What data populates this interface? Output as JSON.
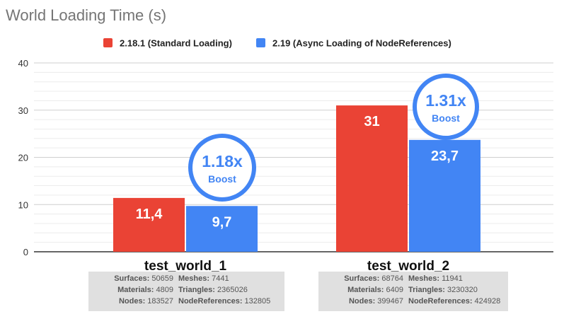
{
  "chart_data": {
    "type": "bar",
    "title": "World Loading Time (s)",
    "categories": [
      "test_world_1",
      "test_world_2"
    ],
    "series": [
      {
        "name": "2.18.1 (Standard Loading)",
        "color": "#ea4335",
        "values": [
          11.4,
          31
        ],
        "labels": [
          "11,4",
          "31"
        ]
      },
      {
        "name": "2.19 (Async Loading of NodeReferences)",
        "color": "#4285f4",
        "values": [
          9.7,
          23.7
        ],
        "labels": [
          "9,7",
          "23,7"
        ]
      }
    ],
    "ylim": [
      0,
      40
    ],
    "yticks": [
      0,
      10,
      20,
      30,
      40
    ],
    "grid": true,
    "legend_position": "top",
    "annotations": [
      {
        "category": "test_world_1",
        "ratio": "1.18x",
        "text": "Boost"
      },
      {
        "category": "test_world_2",
        "ratio": "1.31x",
        "text": "Boost"
      }
    ]
  },
  "stats": [
    {
      "world": "test_world_1",
      "rows": [
        [
          {
            "label": "Surfaces:",
            "value": "50659"
          },
          {
            "label": "Meshes:",
            "value": "7441"
          }
        ],
        [
          {
            "label": "Materials:",
            "value": "4809"
          },
          {
            "label": "Triangles:",
            "value": "2365026"
          }
        ],
        [
          {
            "label": "Nodes:",
            "value": "183527"
          },
          {
            "label": "NodeReferences:",
            "value": "132805"
          }
        ]
      ]
    },
    {
      "world": "test_world_2",
      "rows": [
        [
          {
            "label": "Surfaces:",
            "value": "68764"
          },
          {
            "label": "Meshes:",
            "value": "11941"
          }
        ],
        [
          {
            "label": "Materials:",
            "value": "6409"
          },
          {
            "label": "Triangles:",
            "value": "3230320"
          }
        ],
        [
          {
            "label": "Nodes:",
            "value": "399467"
          },
          {
            "label": "NodeReferences:",
            "value": "424928"
          }
        ]
      ]
    }
  ]
}
